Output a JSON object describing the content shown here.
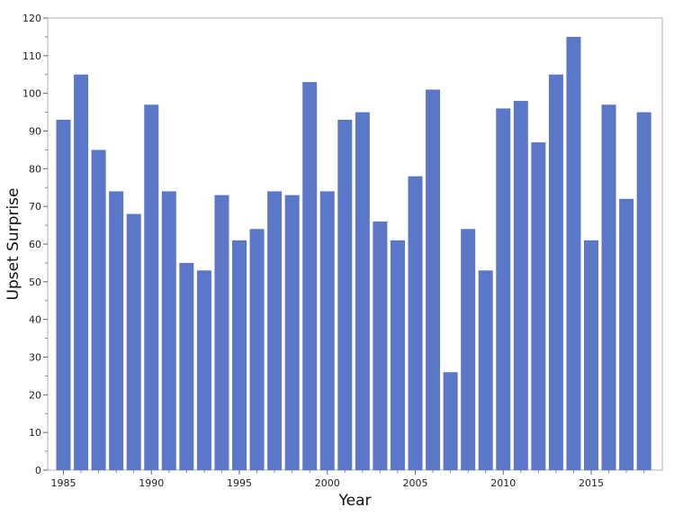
{
  "chart_data": {
    "type": "bar",
    "title": "",
    "xlabel": "Year",
    "ylabel": "Upset Surprise",
    "ylim": [
      0,
      120
    ],
    "yticks": [
      0,
      10,
      20,
      30,
      40,
      50,
      60,
      70,
      80,
      90,
      100,
      110,
      120
    ],
    "xticks": [
      1985,
      1990,
      1995,
      2000,
      2005,
      2010,
      2015
    ],
    "grid": false,
    "bar_color": "#5b78c8",
    "categories": [
      1985,
      1986,
      1987,
      1988,
      1989,
      1990,
      1991,
      1992,
      1993,
      1994,
      1995,
      1996,
      1997,
      1998,
      1999,
      2000,
      2001,
      2002,
      2003,
      2004,
      2005,
      2006,
      2007,
      2008,
      2009,
      2010,
      2011,
      2012,
      2013,
      2014,
      2015,
      2016,
      2017,
      2018
    ],
    "values": [
      93,
      105,
      85,
      74,
      68,
      97,
      74,
      55,
      53,
      73,
      61,
      64,
      74,
      73,
      103,
      74,
      93,
      95,
      66,
      61,
      78,
      101,
      26,
      64,
      53,
      96,
      98,
      87,
      105,
      115,
      61,
      97,
      72,
      95
    ]
  }
}
